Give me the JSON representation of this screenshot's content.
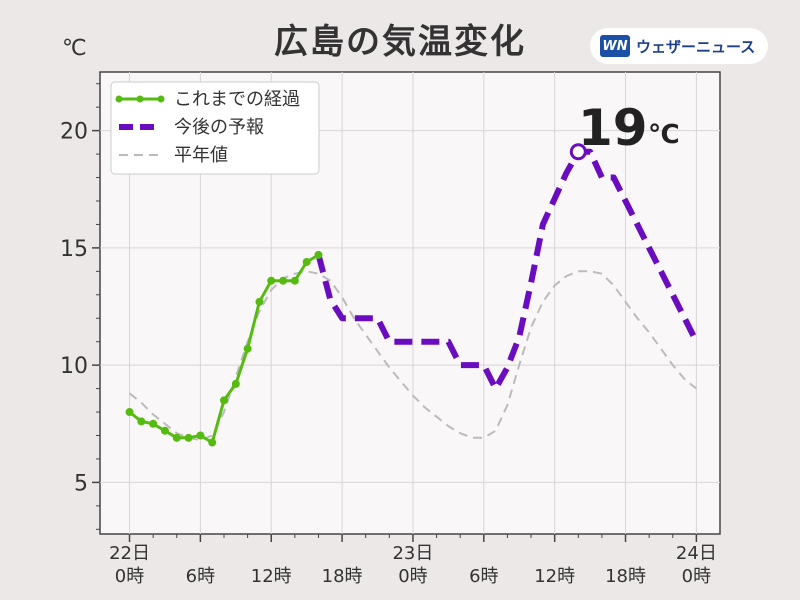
{
  "title": "広島の気温変化",
  "unit": "℃",
  "brand": {
    "logo": "WN",
    "name": "ウェザーニュース"
  },
  "colors": {
    "observed": "#55bb11",
    "forecast": "#6a0dc0",
    "normal": "#bbbbbb"
  },
  "chart_data": {
    "type": "line",
    "title": "広島の気温変化",
    "ylabel": "℃",
    "ylim": [
      2.8,
      22.5
    ],
    "xlim": [
      -2.5,
      50
    ],
    "yticks": [
      5,
      10,
      15,
      20
    ],
    "xticks": [
      {
        "x": 0,
        "label": [
          "22日",
          "0時"
        ]
      },
      {
        "x": 6,
        "label": [
          "",
          "6時"
        ]
      },
      {
        "x": 12,
        "label": [
          "",
          "12時"
        ]
      },
      {
        "x": 18,
        "label": [
          "",
          "18時"
        ]
      },
      {
        "x": 24,
        "label": [
          "23日",
          "0時"
        ]
      },
      {
        "x": 30,
        "label": [
          "",
          "6時"
        ]
      },
      {
        "x": 36,
        "label": [
          "",
          "12時"
        ]
      },
      {
        "x": 42,
        "label": [
          "",
          "18時"
        ]
      },
      {
        "x": 48,
        "label": [
          "24日",
          "0時"
        ]
      }
    ],
    "grid": true,
    "legend": "top-left",
    "annotation": {
      "value": "19",
      "unit": "℃",
      "x": 38,
      "y": 19.1
    },
    "series": [
      {
        "name": "これまでの経過",
        "style": "solid-markers",
        "x": [
          0,
          1,
          2,
          3,
          4,
          5,
          6,
          7,
          8,
          9,
          10,
          11,
          12,
          13,
          14,
          15,
          16
        ],
        "y": [
          8.0,
          7.6,
          7.5,
          7.2,
          6.9,
          6.9,
          7.0,
          6.7,
          8.5,
          9.2,
          10.7,
          12.7,
          13.6,
          13.6,
          13.6,
          14.4,
          14.7
        ]
      },
      {
        "name": "今後の予報",
        "style": "dashed-thick",
        "x": [
          16,
          17,
          18,
          19,
          20,
          21,
          22,
          23,
          24,
          25,
          26,
          27,
          28,
          29,
          30,
          31,
          32,
          33,
          34,
          35,
          36,
          37,
          38,
          39,
          40,
          41,
          42,
          43,
          44,
          45,
          46,
          47,
          48
        ],
        "y": [
          14.7,
          12.8,
          12.0,
          12.0,
          12.0,
          12.0,
          11.0,
          11.0,
          11.0,
          11.0,
          11.0,
          11.0,
          10.0,
          10.0,
          10.0,
          9.0,
          9.9,
          11.2,
          13.5,
          16.0,
          17.1,
          18.2,
          19.1,
          19.1,
          18.0,
          18.0,
          17.0,
          16.0,
          15.0,
          14.0,
          13.0,
          12.0,
          11.0
        ]
      },
      {
        "name": "平年値",
        "style": "dashed-thin",
        "x": [
          0,
          1,
          2,
          3,
          4,
          5,
          6,
          7,
          8,
          9,
          10,
          11,
          12,
          13,
          14,
          15,
          16,
          17,
          18,
          19,
          20,
          21,
          22,
          23,
          24,
          25,
          26,
          27,
          28,
          29,
          30,
          31,
          32,
          33,
          34,
          35,
          36,
          37,
          38,
          39,
          40,
          41,
          42,
          43,
          44,
          45,
          46,
          47,
          48
        ],
        "y": [
          8.8,
          8.4,
          7.9,
          7.5,
          7.1,
          6.9,
          6.8,
          7.0,
          8.0,
          9.5,
          11.0,
          12.3,
          13.2,
          13.7,
          13.9,
          14.0,
          13.9,
          13.6,
          12.9,
          12.0,
          11.3,
          10.6,
          9.9,
          9.3,
          8.7,
          8.2,
          7.8,
          7.4,
          7.1,
          6.9,
          6.9,
          7.2,
          8.3,
          10.0,
          11.6,
          12.7,
          13.4,
          13.8,
          14.0,
          14.0,
          13.9,
          13.4,
          12.7,
          12.0,
          11.4,
          10.7,
          10.0,
          9.4,
          9.0
        ]
      }
    ]
  }
}
